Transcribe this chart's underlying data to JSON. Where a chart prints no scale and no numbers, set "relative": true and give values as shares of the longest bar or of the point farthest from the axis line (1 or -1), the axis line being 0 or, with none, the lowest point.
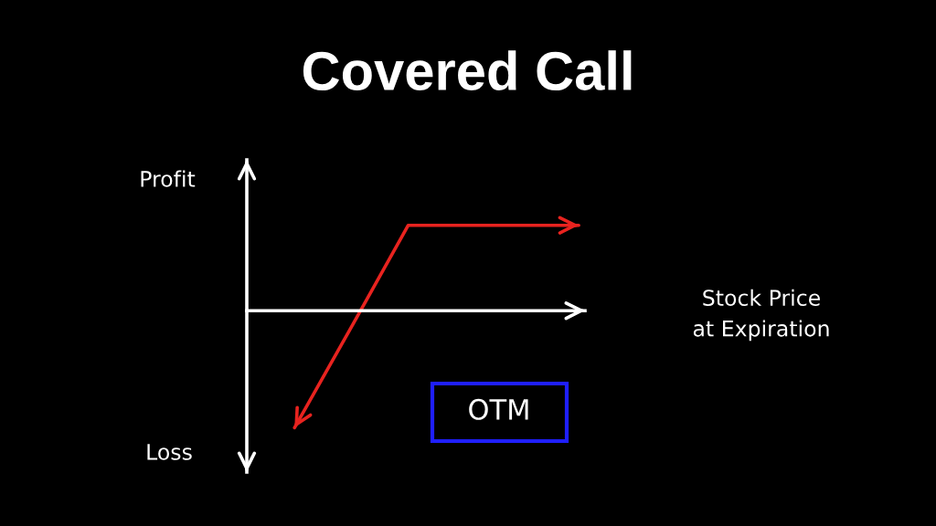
{
  "chart_data": {
    "type": "line",
    "title": "Covered Call",
    "categories": [
      null,
      null,
      null,
      null,
      null,
      null
    ],
    "relative": true,
    "series": [
      {
        "color": "#e8231f",
        "values": [
          -1,
          -0.14,
          0.73,
          0.73,
          0.73,
          0.73
        ]
      }
    ],
    "annotations": [
      "Profit",
      "Stock Price\nat Expiration",
      "OTM",
      "Loss"
    ]
  }
}
